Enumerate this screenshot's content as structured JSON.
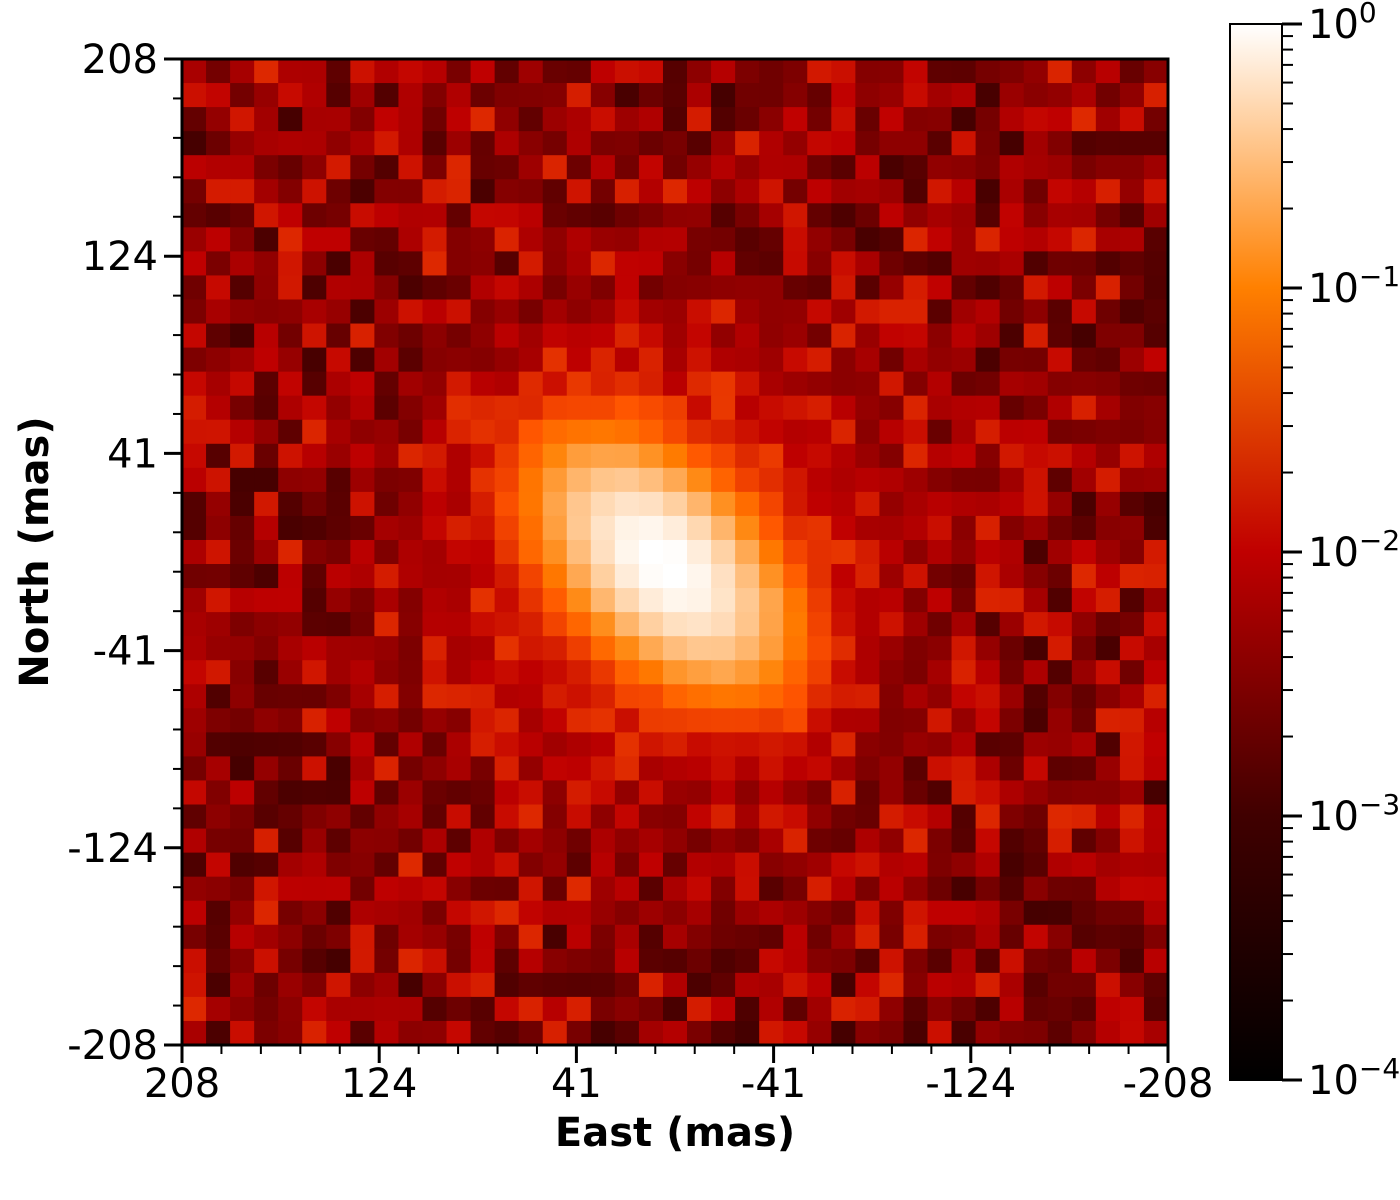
{
  "chart_data": {
    "type": "heatmap",
    "title": "",
    "xlabel": "East (mas)",
    "ylabel": "North (mas)",
    "x_ticks": [
      "208",
      "124",
      "41",
      "-41",
      "-124",
      "-208"
    ],
    "y_ticks": [
      "208",
      "124",
      "41",
      "-41",
      "-124",
      "-208"
    ],
    "xlim": [
      208,
      -208
    ],
    "ylim": [
      -208,
      208
    ],
    "grid_size": 41,
    "colormap": "gist_heat",
    "colorbar": {
      "scale": "log",
      "range": [
        0.0001,
        1
      ],
      "ticks": [
        {
          "value": 1,
          "base": "10",
          "exp": "0"
        },
        {
          "value": 0.1,
          "base": "10",
          "exp": "−1"
        },
        {
          "value": 0.01,
          "base": "10",
          "exp": "−2"
        },
        {
          "value": 0.001,
          "base": "10",
          "exp": "−3"
        },
        {
          "value": 0.0001,
          "base": "10",
          "exp": "−4"
        }
      ]
    },
    "peak": {
      "east": 5,
      "north": -5,
      "value": 1.0
    },
    "background_level": 0.004
  }
}
